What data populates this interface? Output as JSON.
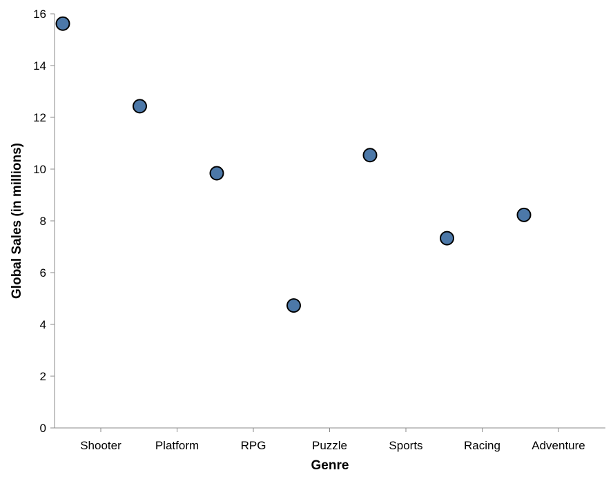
{
  "chart_data": {
    "type": "scatter",
    "title": "",
    "xlabel": "Genre",
    "ylabel": "Global Sales (in millions)",
    "categories": [
      "Shooter",
      "Platform",
      "RPG",
      "Puzzle",
      "Sports",
      "Racing",
      "Adventure"
    ],
    "points": [
      {
        "x": "Shooter",
        "y": 15.62
      },
      {
        "x": "Platform",
        "y": 12.43
      },
      {
        "x": "RPG",
        "y": 9.84
      },
      {
        "x": "Puzzle",
        "y": 4.73
      },
      {
        "x": "Sports",
        "y": 10.54
      },
      {
        "x": "Racing",
        "y": 7.33
      },
      {
        "x": "Adventure",
        "y": 8.23
      }
    ],
    "ylim": [
      0,
      16
    ],
    "yticks": [
      0,
      2,
      4,
      6,
      8,
      10,
      12,
      14,
      16
    ],
    "grid": false,
    "legend": "none",
    "colors": {
      "point_fill": "#4c78a8",
      "point_stroke": "#000000",
      "axis": "#888888"
    }
  }
}
